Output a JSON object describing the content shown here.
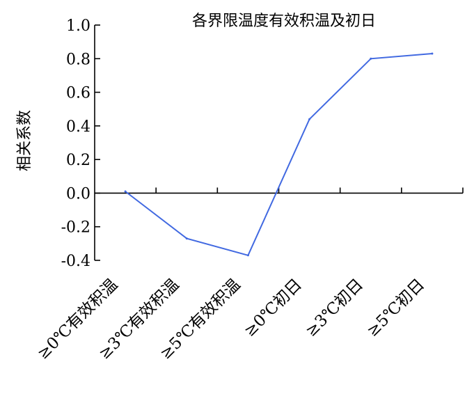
{
  "chart_data": {
    "type": "line",
    "title": "各界限温度有效积温及初日",
    "xlabel": "",
    "ylabel": "相关系数",
    "ylim": [
      -0.4,
      1.0
    ],
    "yticks": [
      "1.0",
      "0.8",
      "0.6",
      "0.4",
      "0.2",
      "0.0",
      "-0.2",
      "-0.4"
    ],
    "categories": [
      "≥0℃有效积温",
      "≥3℃有效积温",
      "≥5℃有效积温",
      "≥0℃初日",
      "≥3℃初日",
      "≥5℃初日"
    ],
    "series": [
      {
        "values": [
          0.01,
          -0.27,
          -0.37,
          0.44,
          0.8,
          0.83
        ],
        "color": "#4169e1"
      }
    ],
    "grid": false,
    "legend": "none"
  }
}
